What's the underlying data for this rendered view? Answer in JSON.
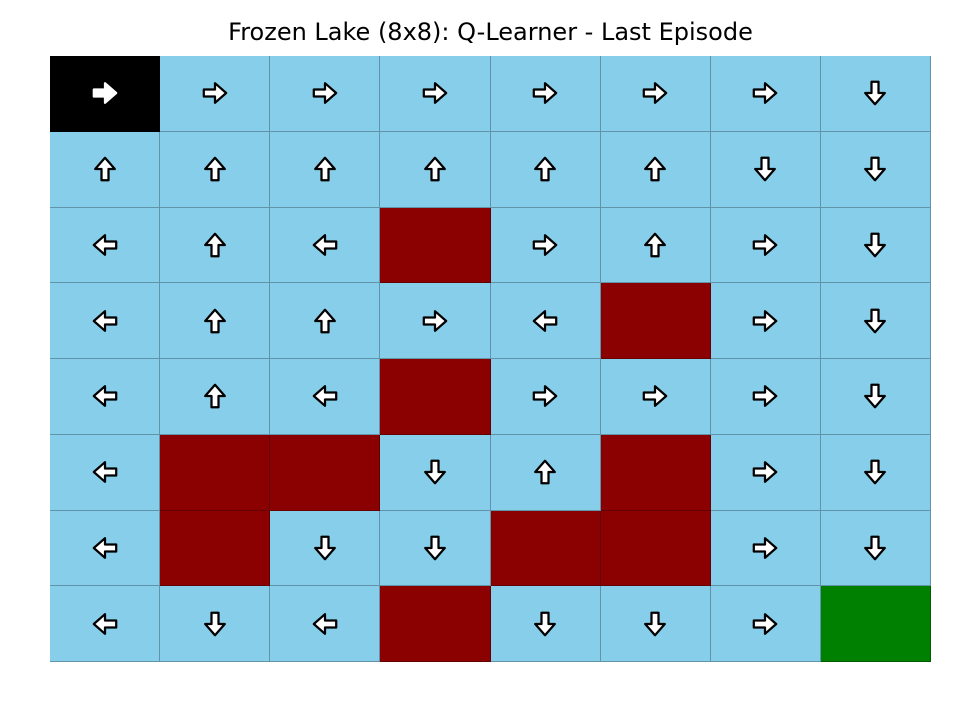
{
  "title": "Frozen Lake (8x8): Q-Learner - Last Episode",
  "colors": {
    "frozen": "#87ceeb",
    "hole": "#8b0000",
    "start": "#000000",
    "goal": "#008000",
    "arrow_fill": "#ffffff",
    "arrow_stroke": "#000000"
  },
  "grid": [
    [
      {
        "type": "start",
        "action": "right"
      },
      {
        "type": "frozen",
        "action": "right"
      },
      {
        "type": "frozen",
        "action": "right"
      },
      {
        "type": "frozen",
        "action": "right"
      },
      {
        "type": "frozen",
        "action": "right"
      },
      {
        "type": "frozen",
        "action": "right"
      },
      {
        "type": "frozen",
        "action": "right"
      },
      {
        "type": "frozen",
        "action": "down"
      }
    ],
    [
      {
        "type": "frozen",
        "action": "up"
      },
      {
        "type": "frozen",
        "action": "up"
      },
      {
        "type": "frozen",
        "action": "up"
      },
      {
        "type": "frozen",
        "action": "up"
      },
      {
        "type": "frozen",
        "action": "up"
      },
      {
        "type": "frozen",
        "action": "up"
      },
      {
        "type": "frozen",
        "action": "down"
      },
      {
        "type": "frozen",
        "action": "down"
      }
    ],
    [
      {
        "type": "frozen",
        "action": "left"
      },
      {
        "type": "frozen",
        "action": "up"
      },
      {
        "type": "frozen",
        "action": "left"
      },
      {
        "type": "hole",
        "action": null
      },
      {
        "type": "frozen",
        "action": "right"
      },
      {
        "type": "frozen",
        "action": "up"
      },
      {
        "type": "frozen",
        "action": "right"
      },
      {
        "type": "frozen",
        "action": "down"
      }
    ],
    [
      {
        "type": "frozen",
        "action": "left"
      },
      {
        "type": "frozen",
        "action": "up"
      },
      {
        "type": "frozen",
        "action": "up"
      },
      {
        "type": "frozen",
        "action": "right"
      },
      {
        "type": "frozen",
        "action": "left"
      },
      {
        "type": "hole",
        "action": null
      },
      {
        "type": "frozen",
        "action": "right"
      },
      {
        "type": "frozen",
        "action": "down"
      }
    ],
    [
      {
        "type": "frozen",
        "action": "left"
      },
      {
        "type": "frozen",
        "action": "up"
      },
      {
        "type": "frozen",
        "action": "left"
      },
      {
        "type": "hole",
        "action": null
      },
      {
        "type": "frozen",
        "action": "right"
      },
      {
        "type": "frozen",
        "action": "right"
      },
      {
        "type": "frozen",
        "action": "right"
      },
      {
        "type": "frozen",
        "action": "down"
      }
    ],
    [
      {
        "type": "frozen",
        "action": "left"
      },
      {
        "type": "hole",
        "action": null
      },
      {
        "type": "hole",
        "action": null
      },
      {
        "type": "frozen",
        "action": "down"
      },
      {
        "type": "frozen",
        "action": "up"
      },
      {
        "type": "hole",
        "action": null
      },
      {
        "type": "frozen",
        "action": "right"
      },
      {
        "type": "frozen",
        "action": "down"
      }
    ],
    [
      {
        "type": "frozen",
        "action": "left"
      },
      {
        "type": "hole",
        "action": null
      },
      {
        "type": "frozen",
        "action": "down"
      },
      {
        "type": "frozen",
        "action": "down"
      },
      {
        "type": "hole",
        "action": null
      },
      {
        "type": "hole",
        "action": null
      },
      {
        "type": "frozen",
        "action": "right"
      },
      {
        "type": "frozen",
        "action": "down"
      }
    ],
    [
      {
        "type": "frozen",
        "action": "left"
      },
      {
        "type": "frozen",
        "action": "down"
      },
      {
        "type": "frozen",
        "action": "left"
      },
      {
        "type": "hole",
        "action": null
      },
      {
        "type": "frozen",
        "action": "down"
      },
      {
        "type": "frozen",
        "action": "down"
      },
      {
        "type": "frozen",
        "action": "right"
      },
      {
        "type": "goal",
        "action": null
      }
    ]
  ]
}
